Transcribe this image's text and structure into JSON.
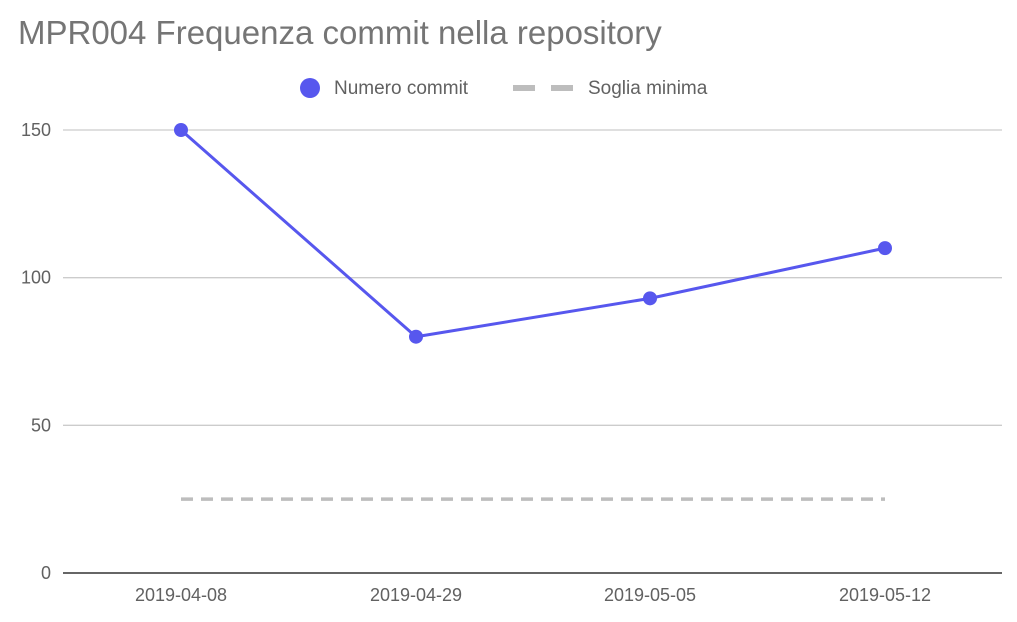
{
  "chart_data": {
    "type": "line",
    "title": "MPR004 Frequenza commit nella repository",
    "xlabel": "",
    "ylabel": "",
    "categories": [
      "2019-04-08",
      "2019-04-29",
      "2019-05-05",
      "2019-05-12"
    ],
    "ylim": [
      0,
      150
    ],
    "y_ticks": [
      0,
      50,
      100,
      150
    ],
    "grid": true,
    "legend_position": "top",
    "series": [
      {
        "name": "Numero commit",
        "values": [
          150,
          80,
          93,
          110
        ],
        "color": "#5757ee",
        "style": "solid",
        "markers": true
      },
      {
        "name": "Soglia minima",
        "values": [
          25,
          25,
          25,
          25
        ],
        "color": "#bdbdbd",
        "style": "dashed",
        "markers": false
      }
    ]
  }
}
